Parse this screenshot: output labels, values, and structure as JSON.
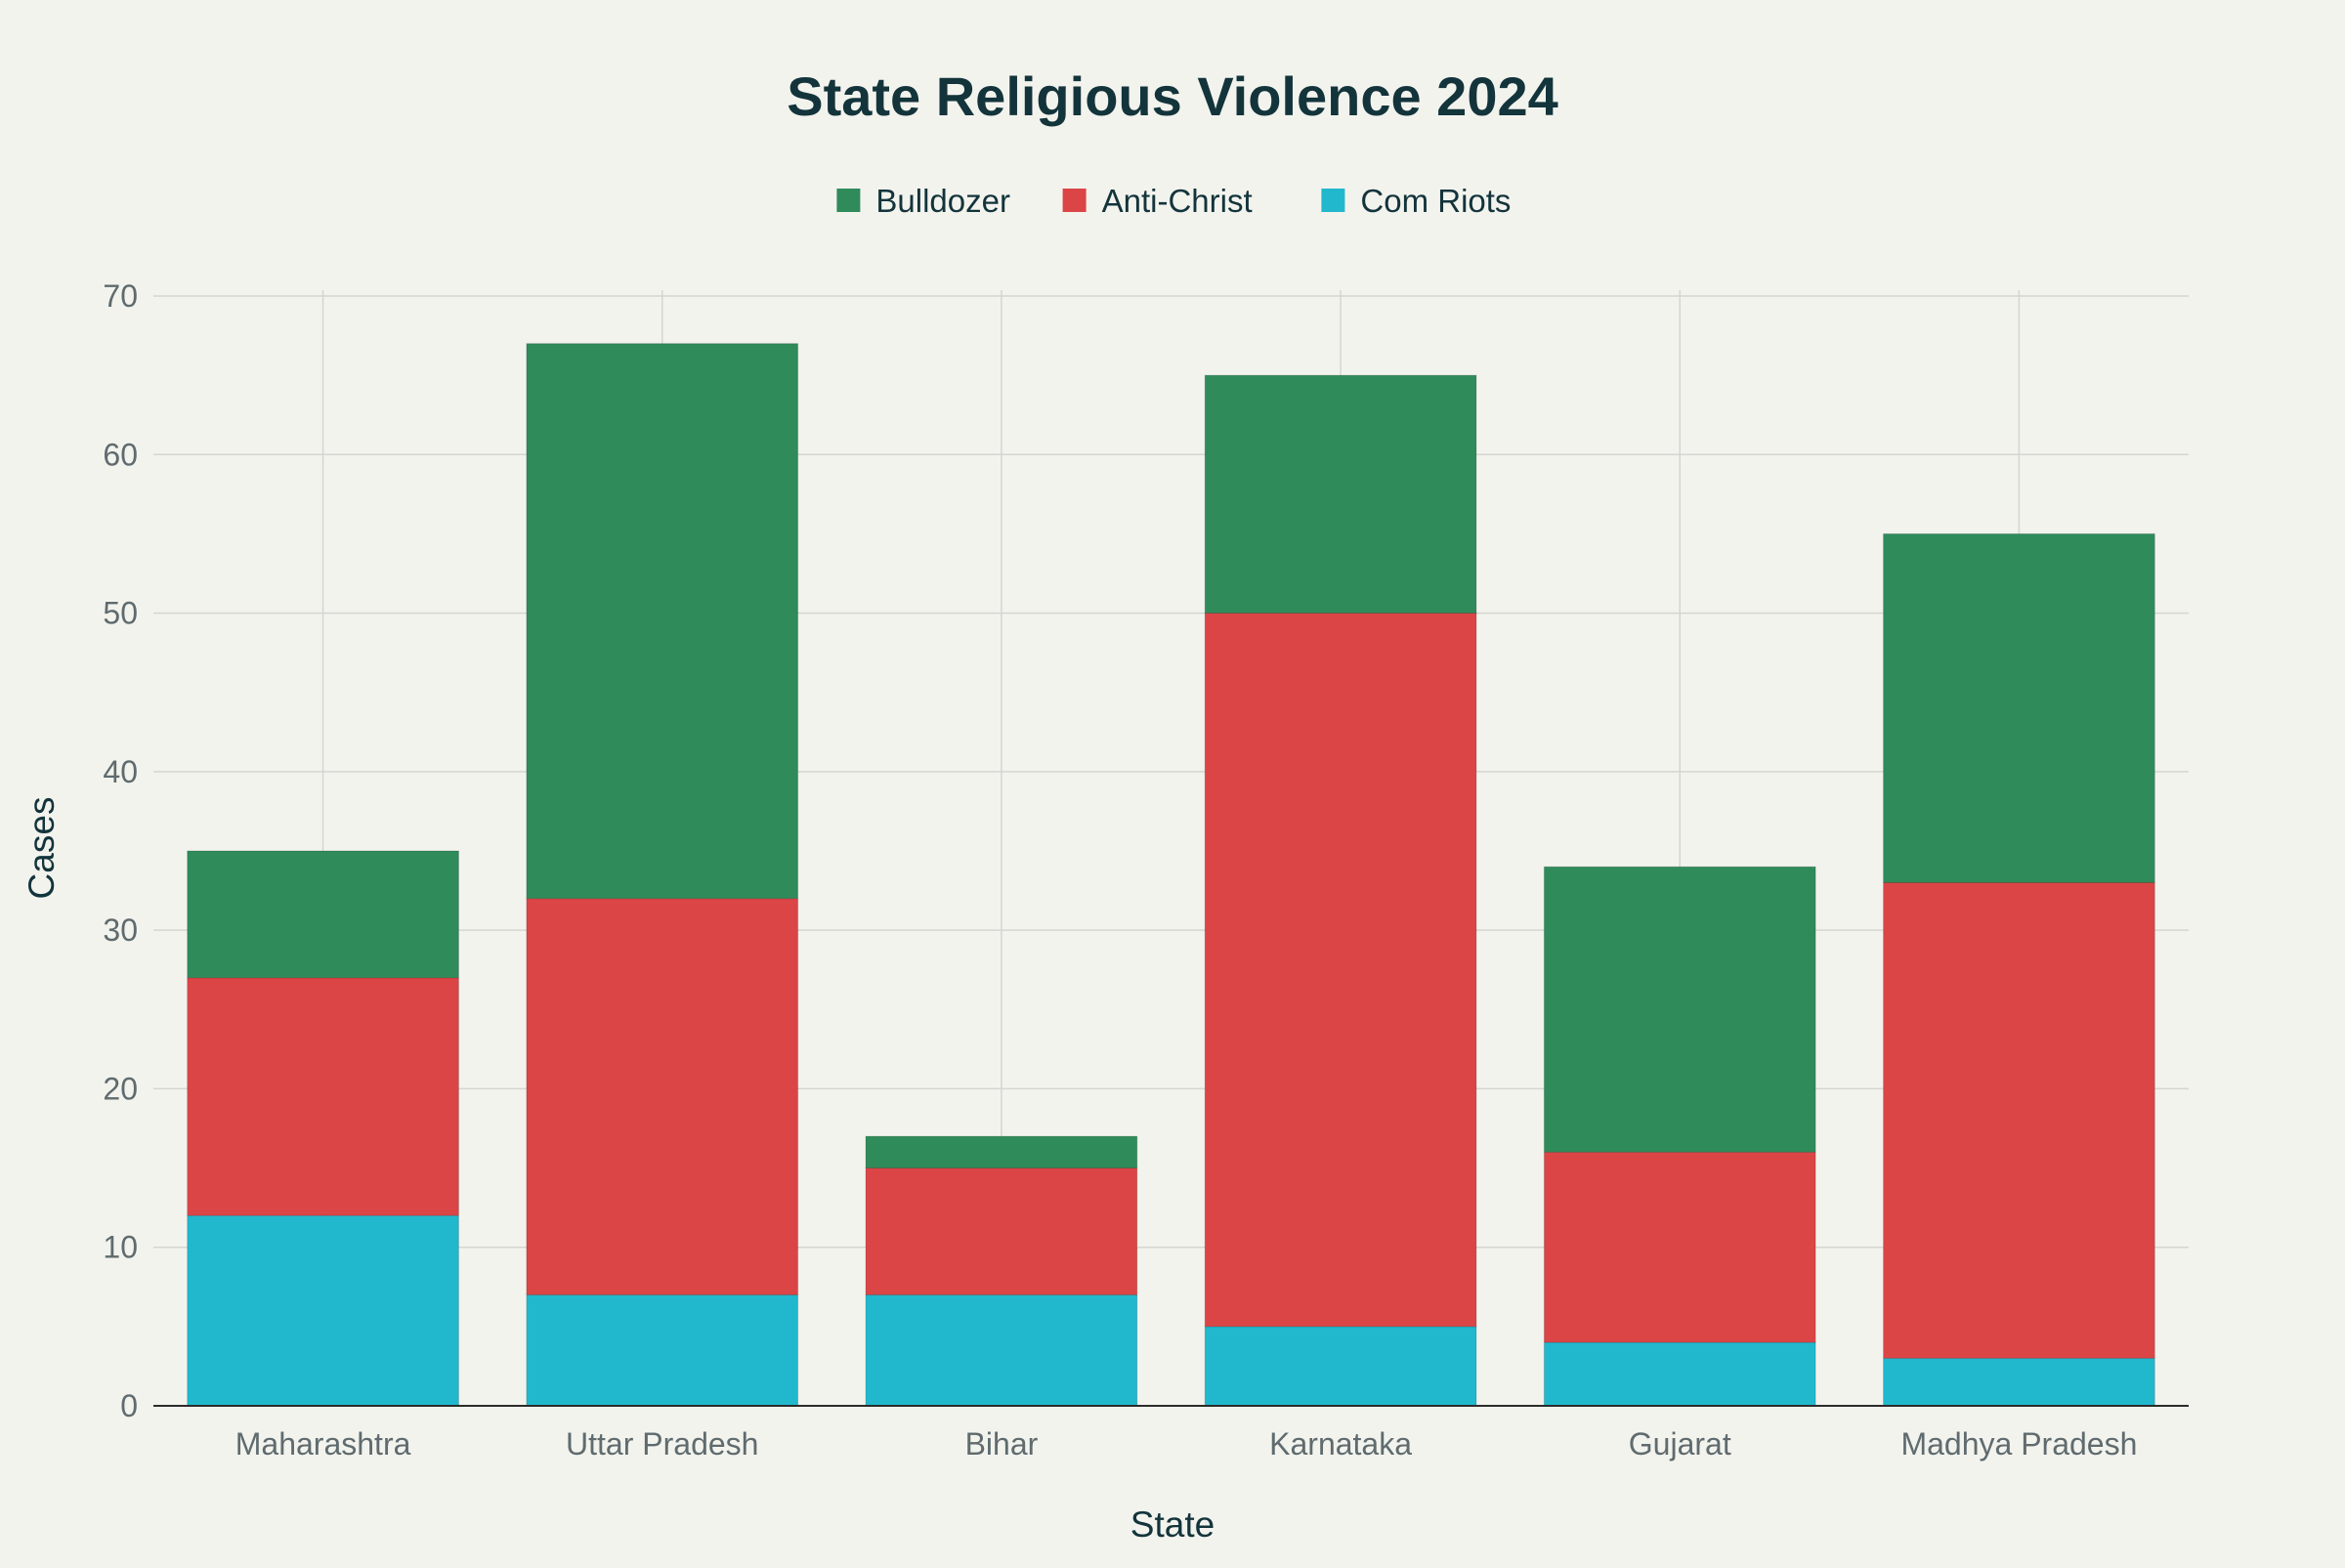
{
  "chart_data": {
    "type": "bar",
    "stacked": true,
    "title": "State Religious Violence 2024",
    "xlabel": "State",
    "ylabel": "Cases",
    "ylim": [
      0,
      70
    ],
    "yticks": [
      0,
      10,
      20,
      30,
      40,
      50,
      60,
      70
    ],
    "grid": true,
    "legend_position": "top-center",
    "categories": [
      "Maharashtra",
      "Uttar Pradesh",
      "Bihar",
      "Karnataka",
      "Gujarat",
      "Madhya Pradesh"
    ],
    "series": [
      {
        "name": "Com Riots",
        "color": "#21b8cd",
        "values": [
          12,
          7,
          7,
          5,
          4,
          3
        ]
      },
      {
        "name": "Anti-Christ",
        "color": "#db4546",
        "values": [
          15,
          25,
          8,
          45,
          12,
          30
        ]
      },
      {
        "name": "Bulldozer",
        "color": "#2f8b5a",
        "values": [
          8,
          35,
          2,
          15,
          18,
          22
        ]
      }
    ],
    "legend_order": [
      "Bulldozer",
      "Anti-Christ",
      "Com Riots"
    ]
  }
}
